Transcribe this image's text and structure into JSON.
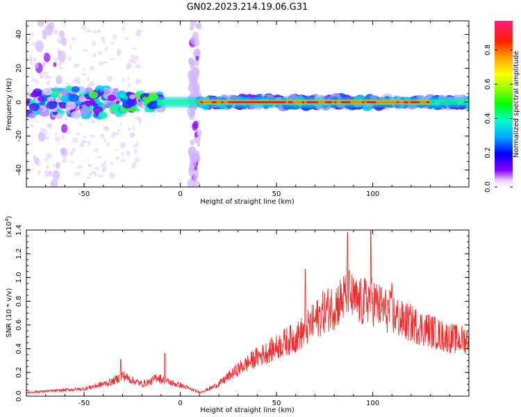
{
  "title": "GN02.2023.214.19.06.G31",
  "chart_data": [
    {
      "type": "heatmap",
      "xlabel": "Height of straight line (km)",
      "ylabel": "Frequency (Hz)",
      "xlim": [
        -80,
        150
      ],
      "ylim": [
        -50,
        48
      ],
      "xticks": [
        -50,
        0,
        50,
        100
      ],
      "yticks": [
        -40,
        -20,
        0,
        20,
        40
      ],
      "grid": false,
      "colorbar": {
        "label": "Normalized spectral amplitude",
        "range": [
          0,
          0.97
        ],
        "ticks": [
          "0.0",
          "0.2",
          "0.4",
          "0.6",
          "0.8"
        ]
      },
      "features": [
        {
          "x_range": [
            -80,
            -30
          ],
          "freq_spread_hz": 8,
          "amplitude": 0.45
        },
        {
          "x_range": [
            -30,
            -10
          ],
          "freq_spread_hz": 5,
          "amplitude": 0.5
        },
        {
          "x_range": [
            10,
            150
          ],
          "freq_spread_hz": 3,
          "amplitude": 0.3
        },
        {
          "x_range": [
            10,
            130
          ],
          "ridge_hz": 0,
          "amplitude": 0.95
        },
        {
          "x_range": [
            5,
            10
          ],
          "vertical_band_hz": [
            -50,
            48
          ],
          "amplitude": 0.25
        },
        {
          "x_range": [
            -75,
            -60
          ],
          "vertical_band_hz": [
            -50,
            48
          ],
          "amplitude": 0.12
        }
      ]
    },
    {
      "type": "line",
      "xlabel": "Height of straight line (km)",
      "ylabel": "SNR (10 * v/v)",
      "y_multiplier": "(x10",
      "y_multiplier_exp": "4",
      "y_multiplier_close": ")",
      "xlim": [
        -80,
        150
      ],
      "ylim": [
        0,
        1.4
      ],
      "xticks": [
        -50,
        0,
        50,
        100
      ],
      "yticks": [
        "0.0",
        "0.2",
        "0.4",
        "0.6",
        "0.8",
        "1.0",
        "1.2",
        "1.4"
      ],
      "color": "#e83030",
      "series": [
        {
          "x": [
            -80,
            -70,
            -60,
            -50,
            -40,
            -35,
            -30,
            -25,
            -20,
            -15,
            -12,
            -10,
            -5,
            0,
            5,
            10,
            15,
            20,
            25,
            30,
            35,
            40,
            45,
            50,
            55,
            60,
            65,
            70,
            75,
            80,
            85,
            87,
            90,
            95,
            99,
            100,
            105,
            110,
            115,
            120,
            125,
            130,
            135,
            140,
            145,
            150
          ],
          "y": [
            0.03,
            0.04,
            0.05,
            0.06,
            0.1,
            0.12,
            0.17,
            0.13,
            0.1,
            0.12,
            0.16,
            0.14,
            0.11,
            0.09,
            0.06,
            0.03,
            0.06,
            0.1,
            0.16,
            0.22,
            0.27,
            0.32,
            0.36,
            0.4,
            0.45,
            0.48,
            0.54,
            0.62,
            0.7,
            0.74,
            0.8,
            0.86,
            0.78,
            0.76,
            0.82,
            0.78,
            0.72,
            0.68,
            0.62,
            0.6,
            0.56,
            0.54,
            0.5,
            0.48,
            0.46,
            0.47
          ]
        }
      ],
      "peaks": [
        {
          "x": -31,
          "y": 0.31
        },
        {
          "x": -8,
          "y": 0.36
        },
        {
          "x": 65,
          "y": 1.07
        },
        {
          "x": 87,
          "y": 1.38
        },
        {
          "x": 99,
          "y": 1.4
        },
        {
          "x": 110,
          "y": 0.95
        }
      ]
    }
  ]
}
